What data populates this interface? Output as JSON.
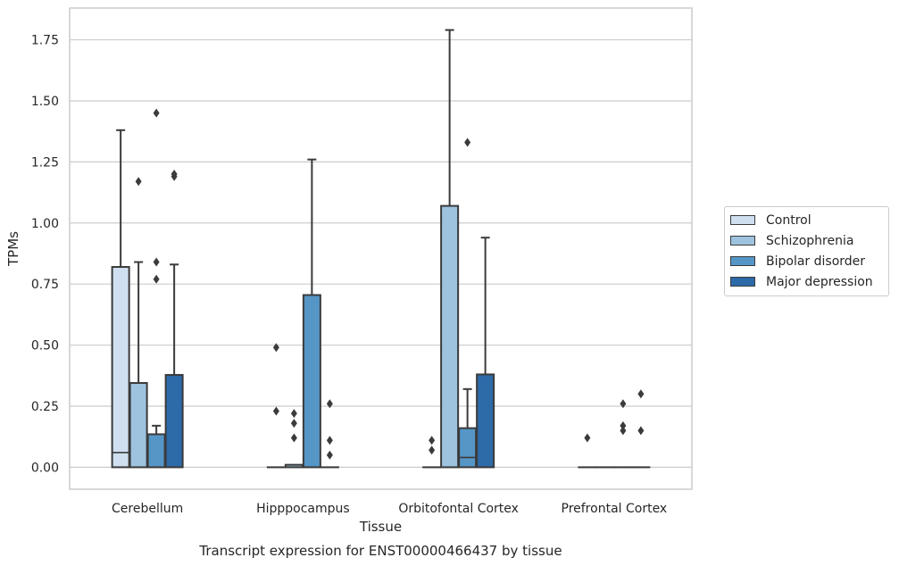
{
  "chart_data": {
    "type": "box",
    "title": "Transcript expression for ENST00000466437 by tissue",
    "xlabel": "Tissue",
    "ylabel": "TPMs",
    "ylim": [
      -0.09,
      1.88
    ],
    "yticks": [
      "0.00",
      "0.25",
      "0.50",
      "0.75",
      "1.00",
      "1.25",
      "1.50",
      "1.75"
    ],
    "grid": true,
    "legend_position": "right",
    "categories": [
      "Cerebellum",
      "Hipppocampus",
      "Orbitofontal Cortex",
      "Prefrontal Cortex"
    ],
    "series": [
      {
        "name": "Control",
        "color": "#cfdff0",
        "boxes": [
          {
            "whislo": 0,
            "q1": 0,
            "med": 0.06,
            "q3": 0.82,
            "whishi": 1.38,
            "fliers": []
          },
          {
            "whislo": 0,
            "q1": 0,
            "med": 0,
            "q3": 0,
            "whishi": 0,
            "fliers": [
              0.23,
              0.49
            ]
          },
          {
            "whislo": 0,
            "q1": 0,
            "med": 0,
            "q3": 0,
            "whishi": 0,
            "fliers": [
              0.07,
              0.11
            ]
          },
          {
            "whislo": 0,
            "q1": 0,
            "med": 0,
            "q3": 0,
            "whishi": 0,
            "fliers": [
              0.12
            ]
          }
        ]
      },
      {
        "name": "Schizophrenia",
        "color": "#9dc3de",
        "boxes": [
          {
            "whislo": 0,
            "q1": 0,
            "med": 0,
            "q3": 0.345,
            "whishi": 0.84,
            "fliers": [
              1.17
            ]
          },
          {
            "whislo": 0,
            "q1": 0,
            "med": 0,
            "q3": 0.01,
            "whishi": 0.01,
            "fliers": [
              0.12,
              0.18,
              0.22
            ]
          },
          {
            "whislo": 0,
            "q1": 0,
            "med": 0,
            "q3": 1.07,
            "whishi": 1.79,
            "fliers": []
          },
          {
            "whislo": 0,
            "q1": 0,
            "med": 0,
            "q3": 0,
            "whishi": 0,
            "fliers": []
          }
        ]
      },
      {
        "name": "Bipolar disorder",
        "color": "#5596c6",
        "boxes": [
          {
            "whislo": 0,
            "q1": 0,
            "med": 0,
            "q3": 0.135,
            "whishi": 0.17,
            "fliers": [
              0.77,
              0.84,
              1.45
            ]
          },
          {
            "whislo": 0,
            "q1": 0,
            "med": 0,
            "q3": 0.705,
            "whishi": 1.26,
            "fliers": []
          },
          {
            "whislo": 0,
            "q1": 0,
            "med": 0.04,
            "q3": 0.16,
            "whishi": 0.32,
            "fliers": [
              1.33
            ]
          },
          {
            "whislo": 0,
            "q1": 0,
            "med": 0,
            "q3": 0,
            "whishi": 0,
            "fliers": [
              0.15,
              0.17,
              0.26
            ]
          }
        ]
      },
      {
        "name": "Major depression",
        "color": "#2d6aa8",
        "boxes": [
          {
            "whislo": 0,
            "q1": 0,
            "med": 0,
            "q3": 0.378,
            "whishi": 0.83,
            "fliers": [
              1.19,
              1.2
            ]
          },
          {
            "whislo": 0,
            "q1": 0,
            "med": 0,
            "q3": 0,
            "whishi": 0,
            "fliers": [
              0.05,
              0.11,
              0.26
            ]
          },
          {
            "whislo": 0,
            "q1": 0,
            "med": 0,
            "q3": 0.38,
            "whishi": 0.94,
            "fliers": []
          },
          {
            "whislo": 0,
            "q1": 0,
            "med": 0,
            "q3": 0,
            "whishi": 0,
            "fliers": [
              0.15,
              0.3
            ]
          }
        ]
      }
    ]
  }
}
